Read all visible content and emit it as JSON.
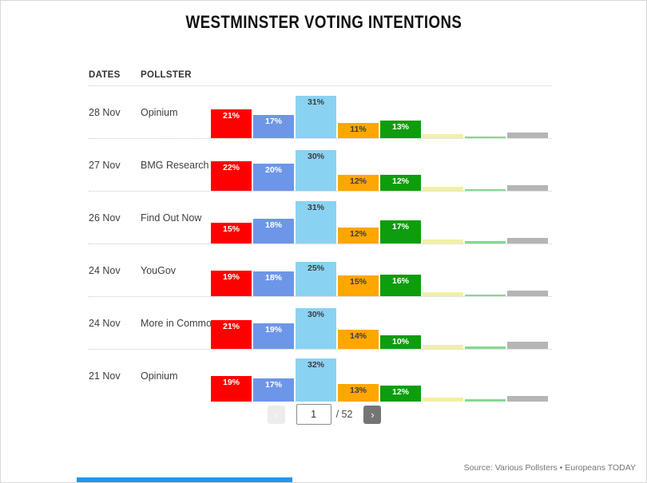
{
  "title": "WESTMINSTER VOTING INTENTIONS",
  "table_header": {
    "dates": "DATES",
    "pollster": "POLLSTER"
  },
  "chart_data": {
    "type": "bar",
    "title": "WESTMINSTER VOTING INTENTIONS",
    "unit": "%",
    "orientation": "grouped vertical bars per poll row, no axes, value labels on bars",
    "series_names": [
      "red",
      "blue",
      "skyblue",
      "orange",
      "green",
      "pale-yellow",
      "light-green",
      "gray"
    ],
    "series_colors": [
      "#ff0000",
      "#6d96e8",
      "#8ad2f2",
      "#ffa600",
      "#0e9d0e",
      "#f1f0a3",
      "#82d992",
      "#b5b5b5"
    ],
    "label_text_colors": [
      "#ffffff",
      "#ffffff",
      "#3d3d3d",
      "#3d3d3d",
      "#ffffff"
    ],
    "rows": [
      {
        "date": "28 Nov",
        "pollster": "Opinium",
        "values": [
          21,
          17,
          31,
          11,
          13
        ],
        "labels": [
          "21%",
          "17%",
          "31%",
          "11%",
          "13%"
        ],
        "minor_values": [
          3,
          1,
          4
        ]
      },
      {
        "date": "27 Nov",
        "pollster": "BMG Research",
        "values": [
          22,
          20,
          30,
          12,
          12
        ],
        "labels": [
          "22%",
          "20%",
          "30%",
          "12%",
          "12%"
        ],
        "minor_values": [
          3,
          1,
          4
        ]
      },
      {
        "date": "26 Nov",
        "pollster": "Find Out Now",
        "values": [
          15,
          18,
          31,
          12,
          17
        ],
        "labels": [
          "15%",
          "18%",
          "31%",
          "12%",
          "17%"
        ],
        "minor_values": [
          3,
          2,
          4
        ]
      },
      {
        "date": "24 Nov",
        "pollster": "YouGov",
        "values": [
          19,
          18,
          25,
          15,
          16
        ],
        "labels": [
          "19%",
          "18%",
          "25%",
          "15%",
          "16%"
        ],
        "minor_values": [
          3,
          1,
          4
        ]
      },
      {
        "date": "24 Nov",
        "pollster": "More in Common",
        "values": [
          21,
          19,
          30,
          14,
          10
        ],
        "labels": [
          "21%",
          "19%",
          "30%",
          "14%",
          "10%"
        ],
        "minor_values": [
          3,
          2,
          5
        ]
      },
      {
        "date": "21 Nov",
        "pollster": "Opinium",
        "values": [
          19,
          17,
          32,
          13,
          12
        ],
        "labels": [
          "19%",
          "17%",
          "32%",
          "13%",
          "12%"
        ],
        "minor_values": [
          3,
          2,
          4
        ]
      }
    ],
    "minor_bars_labeled": false
  },
  "pagination": {
    "prev_icon": "‹",
    "next_icon": "›",
    "page_value": "1",
    "total_label": "/ 52"
  },
  "footer": {
    "source_text": "Source: Various Pollsters • Europeans TODAY"
  },
  "colors": {
    "page_border": "#d9d9d9",
    "separator": "#c9c9c9",
    "prev_button_bg": "#ececec",
    "next_button_bg": "#757575",
    "bottom_bar": "#2196f3"
  }
}
